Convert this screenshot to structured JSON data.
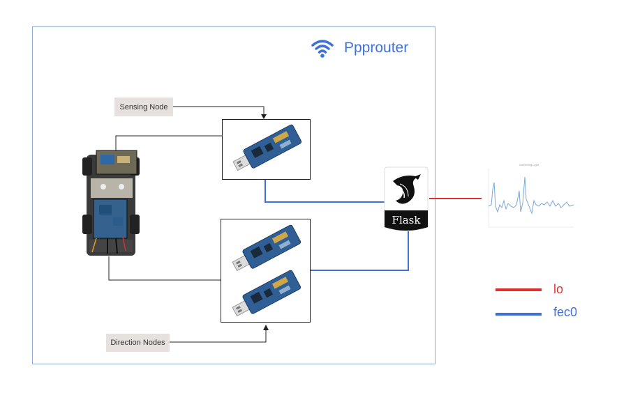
{
  "title": "Ppprouter",
  "callouts": {
    "sensing": "Sensing Node",
    "direction": "Direction Nodes"
  },
  "flask_label": "Flask",
  "legend": [
    {
      "label": "lo",
      "color": "#e0302e"
    },
    {
      "label": "fec0",
      "color": "#3f6fd8"
    }
  ],
  "colors": {
    "frame": "#8fa8d8",
    "title": "#3f72d8",
    "wire_blue": "#3f6fd8",
    "wire_red": "#e0302e",
    "wire_black": "#222222"
  },
  "icons": [
    "wifi-icon",
    "flask-logo",
    "usb-dongle",
    "robot-car-photo",
    "mini-line-chart"
  ],
  "mini_chart": {
    "title": "Streaming Light"
  }
}
